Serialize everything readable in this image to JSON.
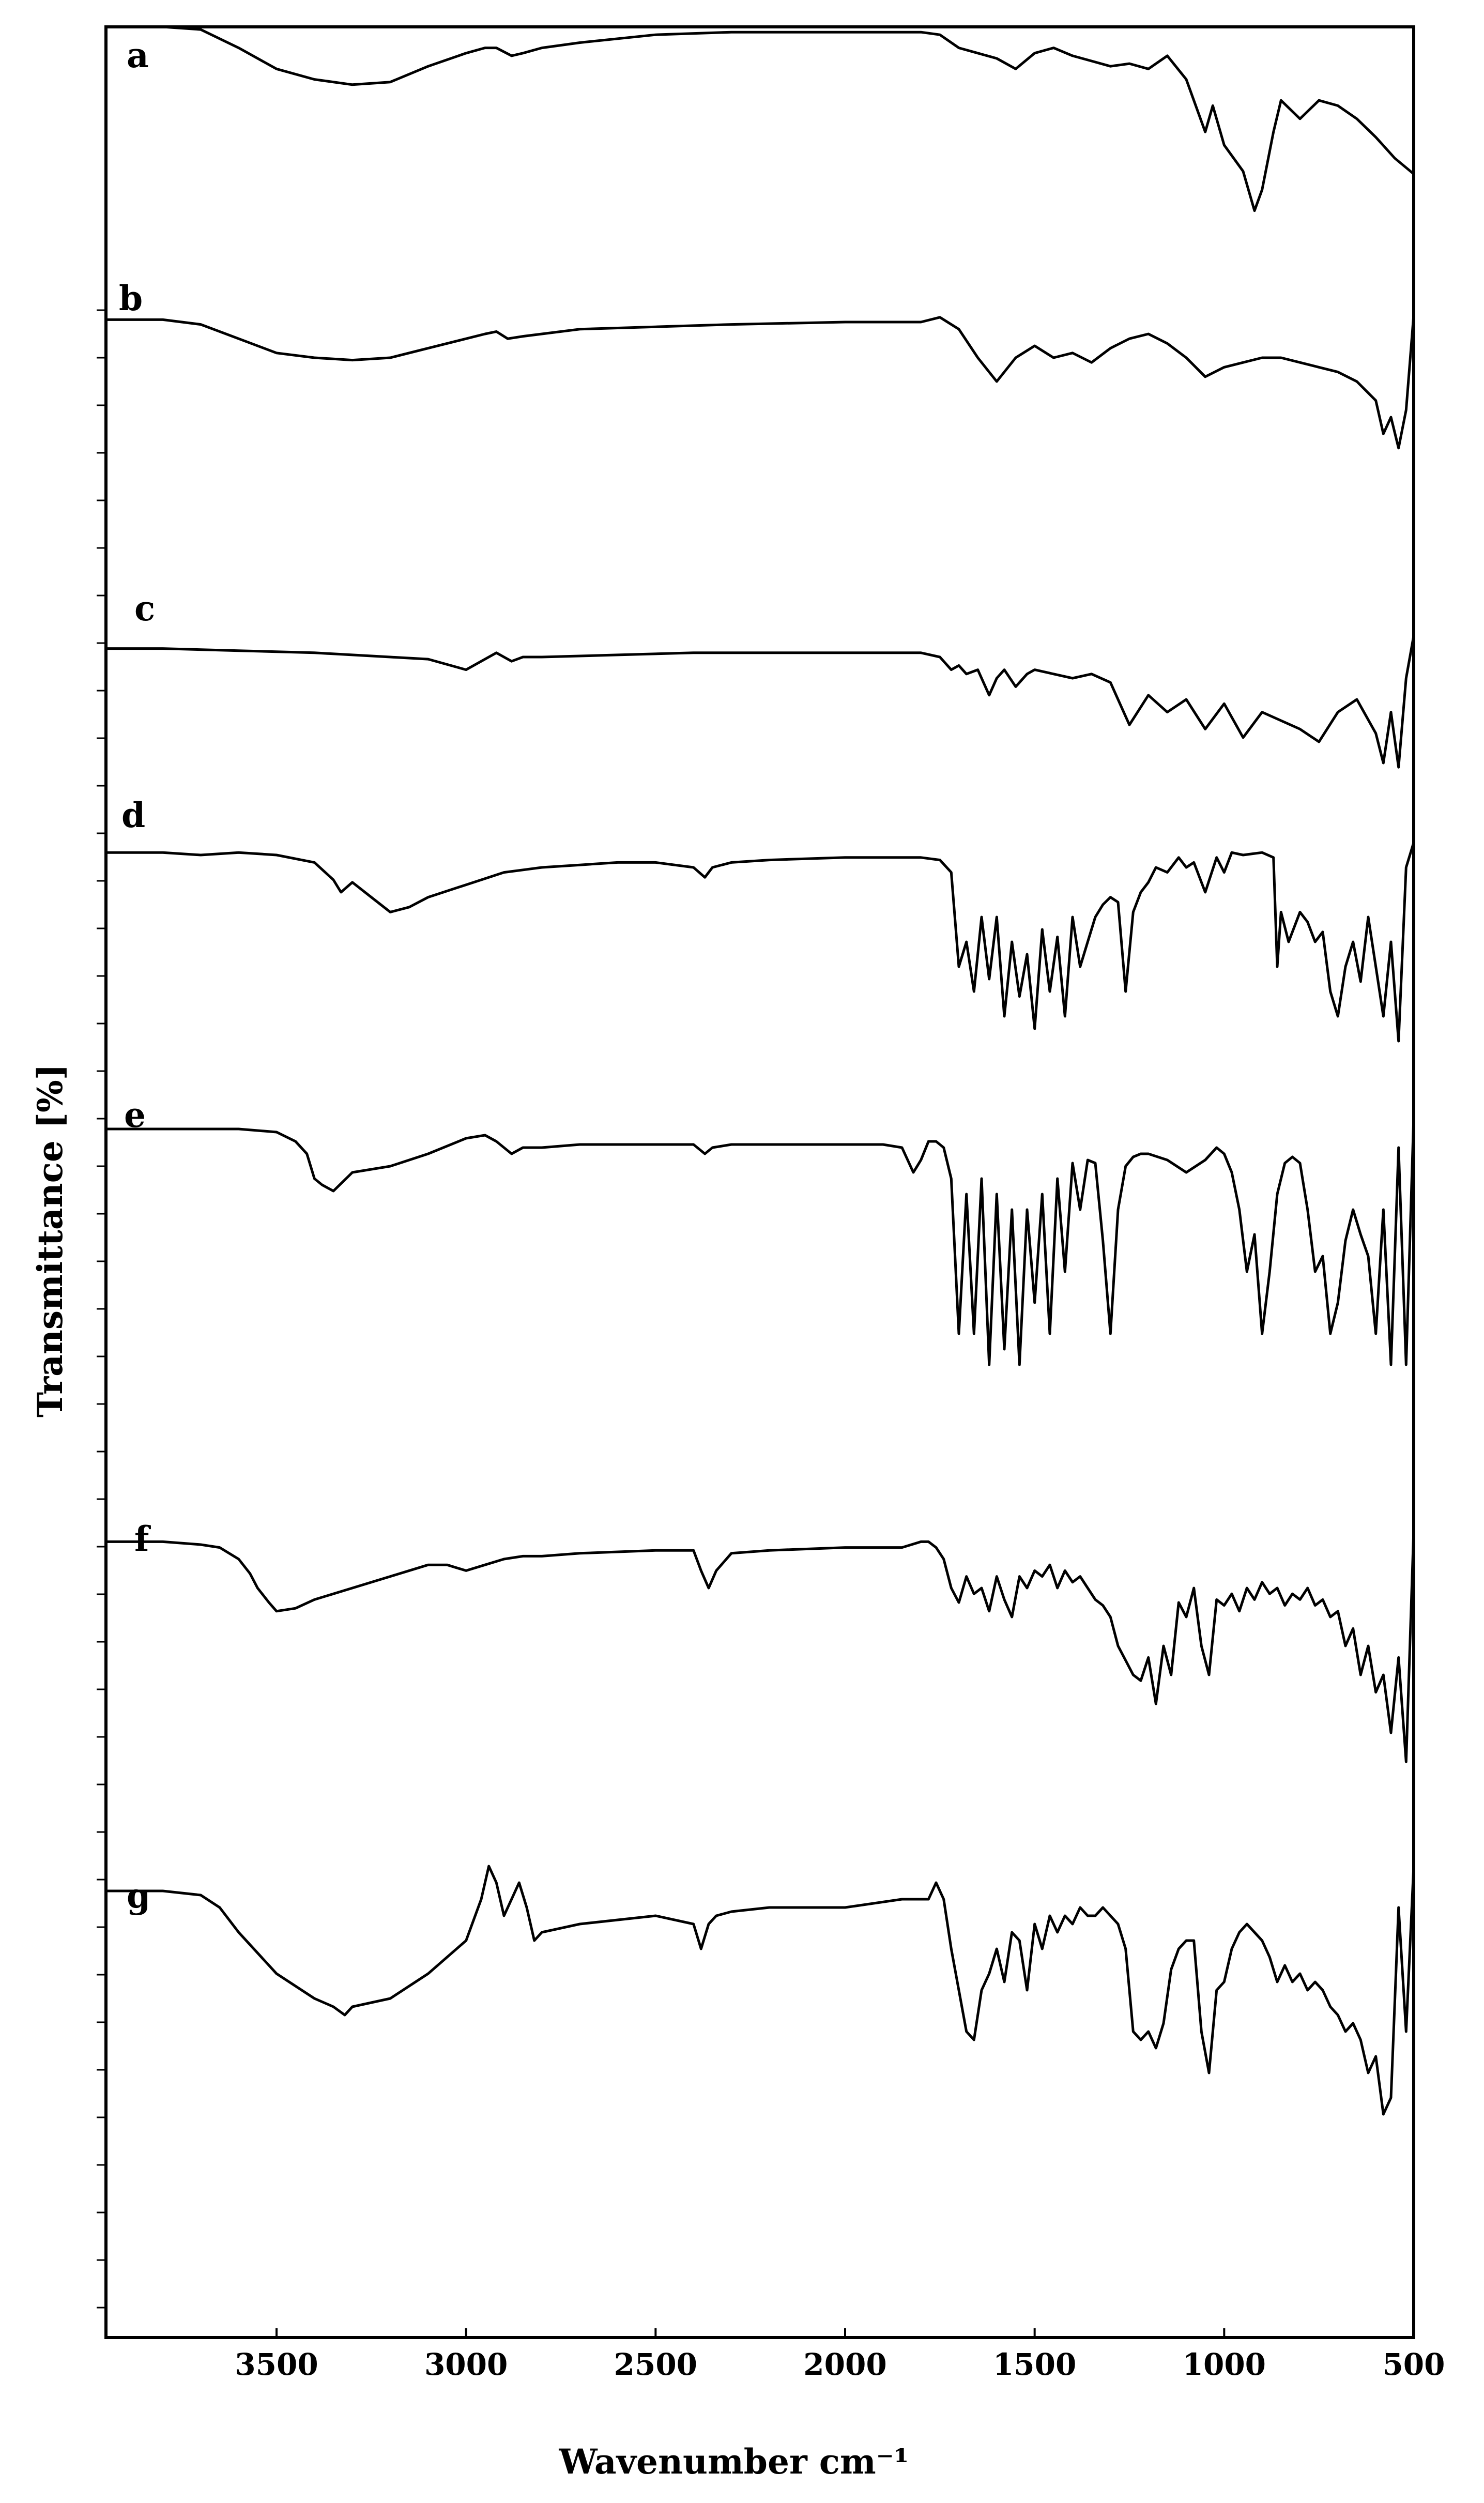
{
  "chart_data": {
    "type": "line",
    "title": "",
    "xlabel": "Wavenumber cm⁻¹",
    "ylabel": "Transmittance [%]",
    "xlim": [
      3950,
      500
    ],
    "x_reversed": true,
    "x_ticks": [
      3500,
      3000,
      2500,
      2000,
      1500,
      1000,
      500
    ],
    "x_tick_labels": [
      "3500",
      "3000",
      "2500",
      "2000",
      "1500",
      "1000",
      "500"
    ],
    "y_tick_values": false,
    "grid": false,
    "legend": "none",
    "line_color": "#000000",
    "series": [
      {
        "name": "a",
        "x": [
          3950,
          3800,
          3700,
          3600,
          3500,
          3400,
          3300,
          3200,
          3100,
          3000,
          2950,
          2920,
          2880,
          2850,
          2800,
          2700,
          2500,
          2300,
          2000,
          1800,
          1750,
          1700,
          1650,
          1600,
          1550,
          1500,
          1450,
          1400,
          1350,
          1300,
          1250,
          1200,
          1150,
          1100,
          1050,
          1030,
          1000,
          950,
          920,
          900,
          870,
          850,
          800,
          750,
          700,
          650,
          600,
          550,
          500
        ],
        "y": [
          100,
          100,
          99,
          92,
          84,
          80,
          78,
          79,
          85,
          90,
          92,
          92,
          89,
          90,
          92,
          94,
          97,
          98,
          98,
          98,
          97,
          92,
          90,
          88,
          84,
          90,
          92,
          89,
          87,
          85,
          86,
          84,
          89,
          80,
          60,
          70,
          55,
          45,
          30,
          38,
          60,
          72,
          65,
          72,
          70,
          65,
          58,
          50,
          44
        ]
      },
      {
        "name": "b",
        "x": [
          3950,
          3800,
          3700,
          3600,
          3500,
          3400,
          3300,
          3200,
          3100,
          3000,
          2950,
          2920,
          2890,
          2850,
          2800,
          2700,
          2500,
          2300,
          2000,
          1800,
          1750,
          1700,
          1650,
          1600,
          1550,
          1500,
          1450,
          1400,
          1350,
          1300,
          1250,
          1200,
          1150,
          1100,
          1050,
          1000,
          950,
          900,
          850,
          800,
          750,
          700,
          650,
          600,
          580,
          560,
          540,
          520,
          500
        ],
        "y": [
          96,
          96,
          94,
          88,
          82,
          80,
          79,
          80,
          84,
          88,
          90,
          91,
          88,
          89,
          90,
          92,
          93,
          94,
          95,
          95,
          97,
          92,
          80,
          70,
          80,
          85,
          80,
          82,
          78,
          84,
          88,
          90,
          86,
          80,
          72,
          76,
          78,
          80,
          80,
          78,
          76,
          74,
          70,
          62,
          48,
          55,
          42,
          58,
          98
        ]
      },
      {
        "name": "c",
        "x": [
          3950,
          3800,
          3600,
          3400,
          3200,
          3100,
          3000,
          2960,
          2920,
          2880,
          2850,
          2800,
          2600,
          2400,
          2200,
          2000,
          1800,
          1750,
          1720,
          1700,
          1680,
          1650,
          1620,
          1600,
          1580,
          1550,
          1520,
          1500,
          1450,
          1400,
          1350,
          1300,
          1250,
          1200,
          1150,
          1100,
          1050,
          1000,
          950,
          900,
          850,
          800,
          750,
          700,
          650,
          600,
          580,
          560,
          540,
          520,
          500
        ],
        "y": [
          94,
          94,
          93,
          92,
          90,
          89,
          84,
          88,
          92,
          88,
          90,
          90,
          91,
          92,
          92,
          92,
          92,
          90,
          84,
          86,
          82,
          84,
          72,
          80,
          84,
          76,
          82,
          84,
          82,
          80,
          82,
          78,
          58,
          72,
          64,
          70,
          56,
          68,
          52,
          64,
          60,
          56,
          50,
          64,
          70,
          54,
          40,
          64,
          38,
          80,
          100
        ]
      },
      {
        "name": "d",
        "x": [
          3950,
          3800,
          3700,
          3600,
          3500,
          3400,
          3350,
          3330,
          3300,
          3250,
          3200,
          3150,
          3100,
          3000,
          2900,
          2800,
          2700,
          2600,
          2500,
          2400,
          2370,
          2350,
          2300,
          2200,
          2000,
          1800,
          1750,
          1720,
          1700,
          1680,
          1660,
          1640,
          1620,
          1600,
          1580,
          1560,
          1540,
          1520,
          1500,
          1480,
          1460,
          1440,
          1420,
          1400,
          1380,
          1360,
          1340,
          1320,
          1300,
          1280,
          1260,
          1240,
          1220,
          1200,
          1180,
          1150,
          1120,
          1100,
          1080,
          1050,
          1020,
          1000,
          980,
          950,
          900,
          870,
          860,
          850,
          830,
          800,
          780,
          760,
          740,
          720,
          700,
          680,
          660,
          640,
          620,
          600,
          580,
          560,
          540,
          520,
          500
        ],
        "y": [
          96,
          96,
          95,
          96,
          95,
          92,
          85,
          80,
          84,
          78,
          72,
          74,
          78,
          83,
          88,
          90,
          91,
          92,
          92,
          90,
          86,
          90,
          92,
          93,
          94,
          94,
          93,
          88,
          50,
          60,
          40,
          70,
          45,
          70,
          30,
          60,
          38,
          55,
          25,
          65,
          40,
          62,
          30,
          70,
          50,
          60,
          70,
          75,
          78,
          76,
          40,
          72,
          80,
          84,
          90,
          88,
          94,
          90,
          92,
          80,
          94,
          88,
          96,
          95,
          96,
          94,
          50,
          72,
          60,
          72,
          68,
          60,
          64,
          40,
          30,
          50,
          60,
          44,
          70,
          50,
          30,
          60,
          20,
          90,
          100
        ]
      },
      {
        "name": "e",
        "x": [
          3950,
          3800,
          3700,
          3600,
          3500,
          3450,
          3420,
          3400,
          3380,
          3350,
          3300,
          3200,
          3100,
          3000,
          2950,
          2920,
          2880,
          2850,
          2800,
          2700,
          2500,
          2400,
          2370,
          2350,
          2300,
          2100,
          2000,
          1900,
          1850,
          1820,
          1800,
          1780,
          1760,
          1740,
          1720,
          1700,
          1680,
          1660,
          1640,
          1620,
          1600,
          1580,
          1560,
          1540,
          1520,
          1500,
          1480,
          1460,
          1440,
          1420,
          1400,
          1380,
          1360,
          1340,
          1320,
          1300,
          1280,
          1260,
          1240,
          1220,
          1200,
          1150,
          1100,
          1050,
          1020,
          1000,
          980,
          960,
          940,
          920,
          900,
          880,
          860,
          840,
          820,
          800,
          780,
          760,
          740,
          720,
          700,
          680,
          660,
          640,
          620,
          600,
          580,
          560,
          540,
          520,
          500
        ],
        "y": [
          96,
          96,
          96,
          96,
          95,
          92,
          88,
          80,
          78,
          76,
          82,
          84,
          88,
          93,
          94,
          92,
          88,
          90,
          90,
          91,
          91,
          91,
          88,
          90,
          91,
          91,
          91,
          91,
          90,
          82,
          86,
          92,
          92,
          90,
          80,
          30,
          75,
          30,
          80,
          20,
          75,
          25,
          70,
          20,
          70,
          40,
          75,
          30,
          80,
          50,
          85,
          70,
          86,
          85,
          60,
          30,
          70,
          84,
          87,
          88,
          88,
          86,
          82,
          86,
          90,
          88,
          82,
          70,
          50,
          62,
          30,
          50,
          75,
          85,
          87,
          85,
          70,
          50,
          55,
          30,
          40,
          60,
          70,
          62,
          55,
          30,
          70,
          20,
          90,
          20,
          100
        ]
      },
      {
        "name": "f",
        "x": [
          3950,
          3800,
          3700,
          3650,
          3600,
          3570,
          3550,
          3520,
          3500,
          3450,
          3400,
          3300,
          3200,
          3100,
          3050,
          3000,
          2950,
          2900,
          2850,
          2800,
          2700,
          2500,
          2400,
          2380,
          2360,
          2340,
          2300,
          2200,
          2000,
          1850,
          1800,
          1780,
          1760,
          1740,
          1720,
          1700,
          1680,
          1660,
          1640,
          1620,
          1600,
          1580,
          1560,
          1540,
          1520,
          1500,
          1480,
          1460,
          1440,
          1420,
          1400,
          1380,
          1360,
          1340,
          1320,
          1300,
          1280,
          1260,
          1240,
          1220,
          1200,
          1180,
          1160,
          1140,
          1120,
          1100,
          1080,
          1060,
          1040,
          1020,
          1000,
          980,
          960,
          940,
          920,
          900,
          880,
          860,
          840,
          820,
          800,
          780,
          760,
          740,
          720,
          700,
          680,
          660,
          640,
          620,
          600,
          580,
          560,
          540,
          520,
          500
        ],
        "y": [
          96,
          96,
          95,
          94,
          90,
          85,
          80,
          75,
          72,
          73,
          76,
          80,
          84,
          88,
          88,
          86,
          88,
          90,
          91,
          91,
          92,
          93,
          93,
          86,
          80,
          86,
          92,
          93,
          94,
          94,
          96,
          96,
          94,
          90,
          80,
          75,
          84,
          78,
          80,
          72,
          84,
          76,
          70,
          84,
          80,
          86,
          84,
          88,
          80,
          86,
          82,
          84,
          80,
          76,
          74,
          70,
          60,
          55,
          50,
          48,
          56,
          40,
          60,
          50,
          75,
          70,
          80,
          60,
          50,
          76,
          74,
          78,
          72,
          80,
          76,
          82,
          78,
          80,
          74,
          78,
          76,
          80,
          74,
          76,
          70,
          72,
          60,
          66,
          50,
          60,
          44,
          50,
          30,
          56,
          20,
          100
        ]
      },
      {
        "name": "g",
        "x": [
          3950,
          3800,
          3700,
          3650,
          3600,
          3500,
          3400,
          3350,
          3320,
          3300,
          3250,
          3200,
          3100,
          3000,
          2960,
          2940,
          2920,
          2900,
          2880,
          2860,
          2840,
          2820,
          2800,
          2700,
          2500,
          2400,
          2380,
          2360,
          2340,
          2300,
          2200,
          2000,
          1850,
          1780,
          1760,
          1740,
          1720,
          1700,
          1680,
          1660,
          1640,
          1620,
          1600,
          1580,
          1560,
          1540,
          1520,
          1500,
          1480,
          1460,
          1440,
          1420,
          1400,
          1380,
          1360,
          1340,
          1320,
          1300,
          1280,
          1260,
          1240,
          1220,
          1200,
          1180,
          1160,
          1140,
          1120,
          1100,
          1080,
          1060,
          1040,
          1020,
          1000,
          980,
          960,
          940,
          920,
          900,
          880,
          860,
          840,
          820,
          800,
          780,
          760,
          740,
          720,
          700,
          680,
          660,
          640,
          620,
          600,
          580,
          560,
          540,
          520,
          500
        ],
        "y": [
          94,
          94,
          93,
          90,
          84,
          74,
          68,
          66,
          64,
          66,
          67,
          68,
          74,
          82,
          92,
          100,
          96,
          88,
          92,
          96,
          90,
          82,
          84,
          86,
          88,
          86,
          80,
          86,
          88,
          89,
          90,
          90,
          92,
          92,
          96,
          92,
          80,
          70,
          60,
          58,
          70,
          74,
          80,
          72,
          84,
          82,
          70,
          86,
          80,
          88,
          84,
          88,
          86,
          90,
          88,
          88,
          90,
          88,
          86,
          80,
          60,
          58,
          60,
          56,
          62,
          75,
          80,
          82,
          82,
          60,
          50,
          70,
          72,
          80,
          84,
          86,
          84,
          82,
          78,
          72,
          76,
          72,
          74,
          70,
          72,
          70,
          66,
          64,
          60,
          62,
          58,
          50,
          54,
          40,
          44,
          90,
          60,
          100
        ]
      }
    ]
  }
}
